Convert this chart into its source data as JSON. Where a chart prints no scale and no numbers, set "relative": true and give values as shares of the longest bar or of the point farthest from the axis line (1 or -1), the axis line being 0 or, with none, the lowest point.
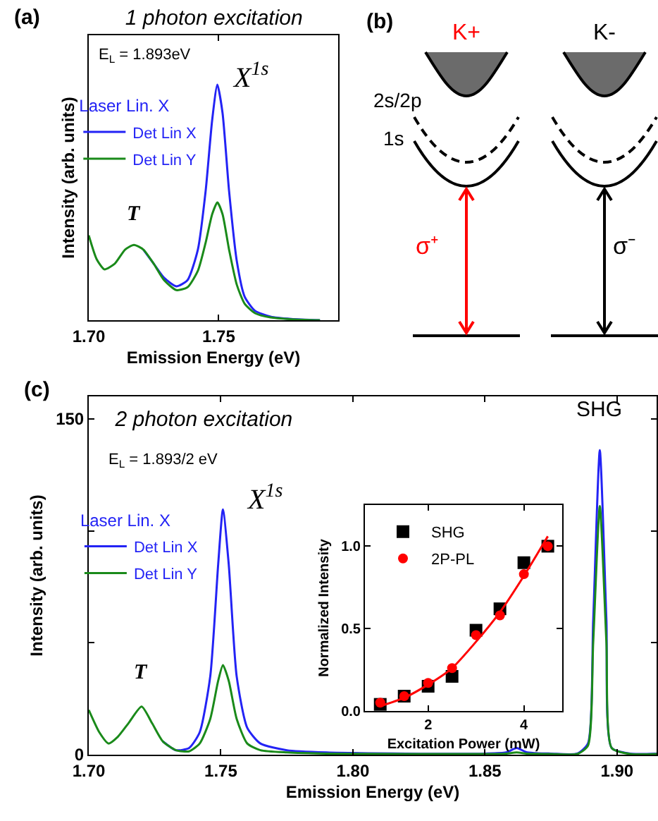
{
  "chart_data": [
    {
      "type": "line",
      "title": "1 photon excitation",
      "xlabel": "Emission Energy (eV)",
      "ylabel": "Intensity (arb. units)",
      "relative": true,
      "legend": "top left",
      "legend_title": "Laser Lin. X",
      "x": [
        1.7,
        1.703,
        1.706,
        1.71,
        1.714,
        1.7174,
        1.721,
        1.725,
        1.729,
        1.7337,
        1.738,
        1.742,
        1.745,
        1.7475,
        1.7495,
        1.7515,
        1.754,
        1.757,
        1.76,
        1.764,
        1.77,
        1.778,
        1.789
      ],
      "xlim": [
        1.7,
        1.796
      ],
      "xticks": [
        {
          "value": 1.7,
          "label": "1.70"
        },
        {
          "value": 1.75,
          "label": "1.75"
        }
      ],
      "series": [
        {
          "name": "Det Lin X",
          "color": "#2323f5",
          "values": [
            null,
            null,
            null,
            null,
            null,
            null,
            0.3,
            0.24,
            0.18,
            0.144,
            0.17,
            0.3,
            0.55,
            0.85,
            1.0,
            0.88,
            0.55,
            0.25,
            0.1,
            0.04,
            0.015,
            0.005,
            0.0
          ]
        },
        {
          "name": "Det Lin Y",
          "color": "#1a8a1a",
          "values": [
            0.36,
            0.26,
            0.216,
            0.24,
            0.3,
            0.32,
            0.3,
            0.24,
            0.17,
            0.128,
            0.14,
            0.21,
            0.33,
            0.45,
            0.5,
            0.45,
            0.3,
            0.15,
            0.07,
            0.03,
            0.012,
            0.004,
            0.0
          ]
        }
      ],
      "annotations": [
        "(a)",
        "E$_{L}$ = 1.893eV",
        {
          "text": "T",
          "x": 1.7174,
          "y": 0.32
        },
        {
          "text": "X$^{1s}$",
          "x": 1.7495,
          "y": 1.0
        },
        "0"
      ]
    },
    {
      "type": "other",
      "annotations": [
        "(b)",
        "K+",
        "K-",
        "2s/2p",
        "1s",
        "σ⁺",
        "σ⁻"
      ]
    },
    {
      "type": "line",
      "title": "2 photon excitation",
      "xlabel": "Emission Energy (eV)",
      "ylabel": "Intensity (arb. units)",
      "legend": "top left",
      "legend_title": "Laser Lin. X",
      "x": [
        1.7,
        1.704,
        1.7075,
        1.711,
        1.715,
        1.72,
        1.724,
        1.728,
        1.733,
        1.738,
        1.742,
        1.746,
        1.749,
        1.7508,
        1.753,
        1.756,
        1.76,
        1.765,
        1.775,
        1.79,
        1.82,
        1.85,
        1.858,
        1.862,
        1.866,
        1.875,
        1.885,
        1.889,
        1.891,
        1.8935,
        1.896,
        1.898,
        1.905,
        1.915
      ],
      "xlim": [
        1.7,
        1.915
      ],
      "xticks": [
        {
          "value": 1.7,
          "label": "1.70"
        },
        {
          "value": 1.75,
          "label": "1.75"
        },
        {
          "value": 1.8,
          "label": "1.80"
        },
        {
          "value": 1.85,
          "label": "1.85"
        },
        {
          "value": 1.9,
          "label": "1.90"
        }
      ],
      "ylim": [
        0,
        160
      ],
      "yticks": [
        0,
        {
          "value": 50,
          "label": null
        },
        {
          "value": 100,
          "label": null
        },
        150
      ],
      "series": [
        {
          "name": "Det Lin X",
          "color": "#2323f5",
          "values": [
            null,
            null,
            null,
            null,
            null,
            null,
            null,
            6,
            2,
            3,
            10,
            35,
            85,
            109.5,
            85,
            35,
            12,
            5,
            2,
            1,
            0.5,
            0.5,
            1,
            3,
            1,
            0.5,
            0.5,
            5,
            60,
            136,
            60,
            3,
            0.5,
            0.5
          ]
        },
        {
          "name": "Det Lin Y",
          "color": "#1a8a1a",
          "values": [
            20,
            10,
            5,
            8,
            14,
            21.5,
            14,
            6,
            2,
            1.5,
            5,
            16,
            33,
            40,
            33,
            16,
            5,
            2,
            1,
            0.5,
            0.3,
            0.3,
            0.5,
            1,
            0.5,
            0.3,
            0.3,
            4,
            50,
            111,
            50,
            3,
            0.3,
            0.3
          ]
        }
      ],
      "annotations": [
        "(c)",
        "E$_{L}$ = 1.893/2 eV",
        {
          "text": "T",
          "x": 1.72,
          "y": 21.5
        },
        {
          "text": "X$^{1s}$",
          "x": 1.7508,
          "y": 109.5
        },
        {
          "text": "SHG",
          "x": 1.8935,
          "y": 136
        }
      ]
    },
    {
      "type": "scatter",
      "xlabel": "Excitation Power (mW)",
      "ylabel": "Normalized Intensity",
      "legend": "top left",
      "xlim": [
        0.68,
        4.8
      ],
      "xticks": [
        2,
        4
      ],
      "ylim": [
        0,
        1.25
      ],
      "yticks": [
        {
          "value": 0,
          "label": "0.0"
        },
        {
          "value": 0.5,
          "label": "0.5"
        },
        {
          "value": 1,
          "label": "1.0"
        }
      ],
      "x": [
        1,
        1.5,
        2,
        2.5,
        3,
        3.5,
        4,
        4.5
      ],
      "series": [
        {
          "name": "SHG",
          "color": "#000000",
          "marker": "square",
          "values": [
            0.04,
            0.09,
            0.15,
            0.21,
            0.49,
            0.62,
            0.9,
            1.0
          ]
        },
        {
          "name": "2P-PL",
          "color": "#ff0000",
          "marker": "circle",
          "values": [
            0.05,
            0.09,
            0.17,
            0.26,
            0.46,
            0.58,
            0.83,
            1.0
          ]
        },
        {
          "type": "line",
          "color": "#ff0000",
          "x": [
            1,
            1.5,
            2,
            2.5,
            3,
            3.5,
            4,
            4.5
          ],
          "values": [
            0.03,
            0.08,
            0.16,
            0.26,
            0.42,
            0.6,
            0.82,
            1.06
          ]
        }
      ]
    }
  ]
}
